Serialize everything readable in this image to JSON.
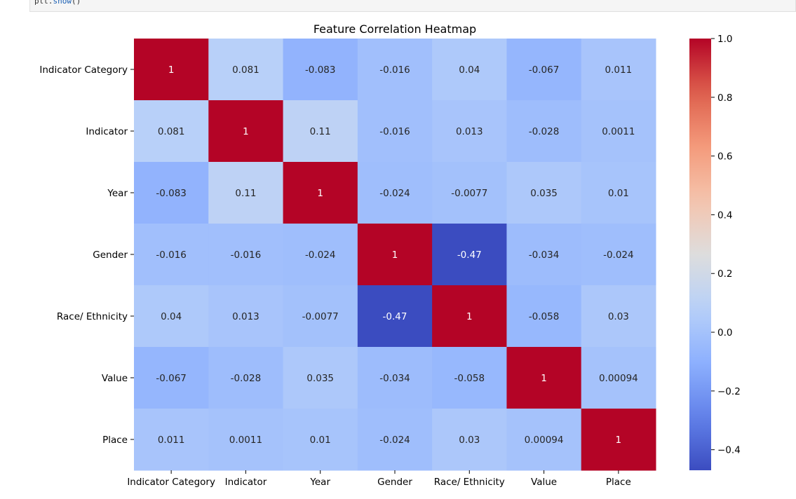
{
  "notebook": {
    "code_object": "plt",
    "code_method": "show",
    "code_suffix": "()"
  },
  "chart_data": {
    "type": "heatmap",
    "title": "Feature Correlation Heatmap",
    "colormap": "coolwarm",
    "x_labels": [
      "Indicator Category",
      "Indicator",
      "Year",
      "Gender",
      "Race/ Ethnicity",
      "Value",
      "Place"
    ],
    "y_labels": [
      "Indicator Category",
      "Indicator",
      "Year",
      "Gender",
      "Race/ Ethnicity",
      "Value",
      "Place"
    ],
    "values": [
      [
        1,
        0.081,
        -0.083,
        -0.016,
        0.04,
        -0.067,
        0.011
      ],
      [
        0.081,
        1,
        0.11,
        -0.016,
        0.013,
        -0.028,
        0.0011
      ],
      [
        -0.083,
        0.11,
        1,
        -0.024,
        -0.0077,
        0.035,
        0.01
      ],
      [
        -0.016,
        -0.016,
        -0.024,
        1,
        -0.47,
        -0.034,
        -0.024
      ],
      [
        0.04,
        0.013,
        -0.0077,
        -0.47,
        1,
        -0.058,
        0.03
      ],
      [
        -0.067,
        -0.028,
        0.035,
        -0.034,
        -0.058,
        1,
        0.00094
      ],
      [
        0.011,
        0.0011,
        0.01,
        -0.024,
        0.03,
        0.00094,
        1
      ]
    ],
    "annotations": [
      [
        "1",
        "0.081",
        "-0.083",
        "-0.016",
        "0.04",
        "-0.067",
        "0.011"
      ],
      [
        "0.081",
        "1",
        "0.11",
        "-0.016",
        "0.013",
        "-0.028",
        "0.0011"
      ],
      [
        "-0.083",
        "0.11",
        "1",
        "-0.024",
        "-0.0077",
        "0.035",
        "0.01"
      ],
      [
        "-0.016",
        "-0.016",
        "-0.024",
        "1",
        "-0.47",
        "-0.034",
        "-0.024"
      ],
      [
        "0.04",
        "0.013",
        "-0.0077",
        "-0.47",
        "1",
        "-0.058",
        "0.03"
      ],
      [
        "-0.067",
        "-0.028",
        "0.035",
        "-0.034",
        "-0.058",
        "1",
        "0.00094"
      ],
      [
        "0.011",
        "0.0011",
        "0.01",
        "-0.024",
        "0.03",
        "0.00094",
        "1"
      ]
    ],
    "colorbar": {
      "vmin": -0.47,
      "vmax": 1,
      "ticks": [
        1.0,
        0.8,
        0.6,
        0.4,
        0.2,
        0.0,
        -0.2,
        -0.4
      ],
      "tick_labels": [
        "1.0",
        "0.8",
        "0.6",
        "0.4",
        "0.2",
        "0.0",
        "−0.2",
        "−0.4"
      ]
    }
  }
}
